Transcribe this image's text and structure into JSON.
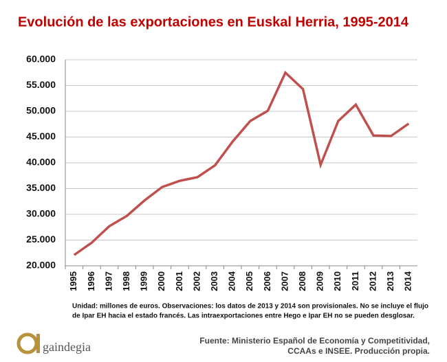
{
  "chart_data": {
    "type": "line",
    "title": "Evolución de las exportaciones en Euskal Herria, 1995-2014",
    "categories": [
      "1995",
      "1996",
      "1997",
      "1998",
      "1999",
      "2000",
      "2001",
      "2002",
      "2003",
      "2004",
      "2005",
      "2006",
      "2007",
      "2008",
      "2009",
      "2010",
      "2011",
      "2012",
      "2013",
      "2014"
    ],
    "series": [
      {
        "name": "Exportaciones",
        "color": "#c0504d",
        "values": [
          22100,
          24500,
          27700,
          29700,
          32700,
          35300,
          36500,
          37200,
          39500,
          44100,
          48100,
          50100,
          57500,
          54300,
          39600,
          48100,
          51300,
          45300,
          45200,
          47600
        ]
      }
    ],
    "ylim": [
      20000,
      60000
    ],
    "yticks": [
      {
        "value": 20000,
        "label": "20.000"
      },
      {
        "value": 25000,
        "label": "25.000"
      },
      {
        "value": 30000,
        "label": "30.000"
      },
      {
        "value": 35000,
        "label": "35.000"
      },
      {
        "value": 40000,
        "label": "40.000"
      },
      {
        "value": 45000,
        "label": "45.000"
      },
      {
        "value": 50000,
        "label": "50.000"
      },
      {
        "value": 55000,
        "label": "55.000"
      },
      {
        "value": 60000,
        "label": "60.000"
      }
    ],
    "grid": true,
    "notes": [
      "Unidad: millones de euros. Observaciones: los datos de 2013 y 2014 son provisionales. No se incluye el flujo",
      "de Ipar EH hacia el estado francés. Las intraexportaciones entre Hego e Ipar EH no se pueden desglosar."
    ],
    "source": [
      "Fuente: Ministerio Español de Economía y Competitividad,",
      "CCAAs e INSEE. Producción propia."
    ],
    "logo": "gaindegia"
  }
}
